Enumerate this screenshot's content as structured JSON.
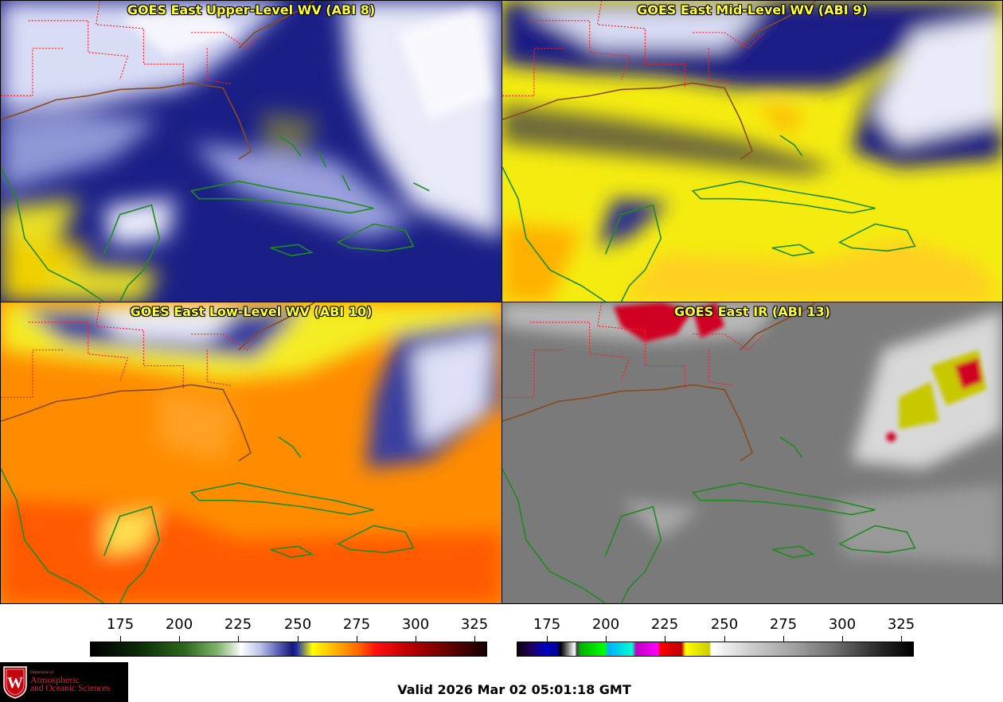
{
  "panels": [
    {
      "id": "upper",
      "title": "GOES East Upper-Level WV (ABI 8)"
    },
    {
      "id": "mid",
      "title": "GOES East Mid-Level WV (ABI 9)"
    },
    {
      "id": "low",
      "title": "GOES East Low-Level WV (ABI 10)"
    },
    {
      "id": "ir",
      "title": "GOES East IR (ABI 13)"
    }
  ],
  "wv_scale": {
    "ticks": [
      "175",
      "200",
      "225",
      "250",
      "275",
      "300",
      "325"
    ]
  },
  "ir_scale": {
    "ticks": [
      "175",
      "200",
      "225",
      "250",
      "275",
      "300",
      "325"
    ]
  },
  "logo": {
    "dept": "Department of",
    "line1": "Atmospheric",
    "line2": "and Oceanic Sciences",
    "seal_letter": "W"
  },
  "valid_time": "Valid 2026 Mar 02 05:01:18 GMT",
  "colors": {
    "title": "#ffff33",
    "coast": "#1e8c1e",
    "state_borders": "#ff2020",
    "us_coast": "#8a4a1a"
  }
}
